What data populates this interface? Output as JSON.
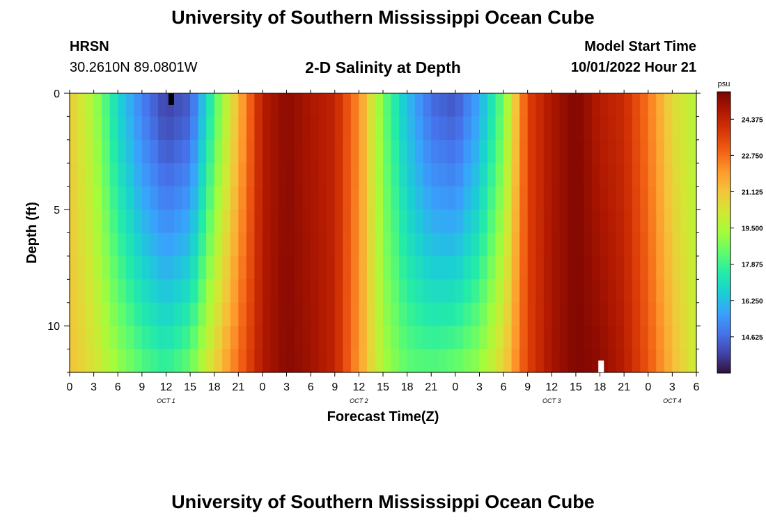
{
  "header": {
    "title": "University of Southern Mississippi Ocean Cube",
    "station": "HRSN",
    "coordinates": "30.2610N  89.0801W",
    "chart_title": "2-D Salinity at Depth",
    "model_start_label": "Model Start Time",
    "model_start_value": "10/01/2022 Hour 21"
  },
  "footer": {
    "title": "University of Southern Mississippi Ocean Cube"
  },
  "colors": {
    "colormap": [
      "#30123b",
      "#4145ab",
      "#4675ed",
      "#39a2fc",
      "#1bcfd4",
      "#24eca6",
      "#61fc6c",
      "#a4fc3b",
      "#d1e834",
      "#f3c63a",
      "#fe9b2d",
      "#f36315",
      "#d93806",
      "#b11901",
      "#7a0402"
    ]
  },
  "chart_data": {
    "type": "heatmap",
    "title": "2-D Salinity at Depth",
    "xlabel": "Forecast Time(Z)",
    "ylabel": "Depth (ft)",
    "x_start_hour_offset": 0,
    "x_end_hour_offset": 78,
    "x_ticks": [
      "0",
      "3",
      "6",
      "9",
      "12",
      "15",
      "18",
      "21",
      "0",
      "3",
      "6",
      "9",
      "12",
      "15",
      "18",
      "21",
      "0",
      "3",
      "6",
      "9",
      "12",
      "15",
      "18",
      "21",
      "0",
      "3",
      "6"
    ],
    "date_labels": [
      {
        "label": "OCT 1",
        "hour_offset": 12
      },
      {
        "label": "OCT 2",
        "hour_offset": 36
      },
      {
        "label": "OCT 3",
        "hour_offset": 60
      },
      {
        "label": "OCT 4",
        "hour_offset": 75
      }
    ],
    "y_ticks": [
      0,
      5,
      10
    ],
    "ylim": [
      0,
      12
    ],
    "depth_levels_ft": [
      0,
      1,
      2,
      3,
      4,
      5,
      6,
      7,
      8,
      9,
      10,
      11,
      12
    ],
    "colorbar": {
      "unit": "psu",
      "min": 13.0,
      "max": 25.6,
      "tick_labels": [
        "24.375",
        "22.750",
        "21.125",
        "19.500",
        "17.875",
        "16.250",
        "14.625"
      ]
    },
    "surface_time_series": {
      "description": "approximate salinity (psu) at hours 0..78, step 3",
      "values": [
        21.0,
        19.4,
        16.8,
        15.0,
        13.8,
        14.3,
        18.0,
        21.4,
        24.6,
        25.3,
        24.8,
        24.4,
        22.2,
        18.6,
        16.2,
        14.6,
        14.2,
        15.8,
        18.6,
        23.6,
        24.8,
        25.5,
        24.6,
        24.2,
        22.6,
        20.6,
        19.6
      ]
    },
    "bottom_time_series": {
      "description": "approximate salinity (psu) at depth 12 ft, hours 0..78, step 3",
      "values": [
        21.2,
        20.4,
        19.2,
        18.3,
        17.8,
        18.6,
        20.8,
        22.8,
        24.7,
        25.4,
        25.0,
        24.4,
        22.0,
        19.4,
        18.4,
        18.3,
        18.6,
        19.2,
        20.8,
        23.6,
        24.9,
        25.5,
        25.3,
        24.6,
        23.2,
        21.4,
        20.0
      ]
    }
  }
}
